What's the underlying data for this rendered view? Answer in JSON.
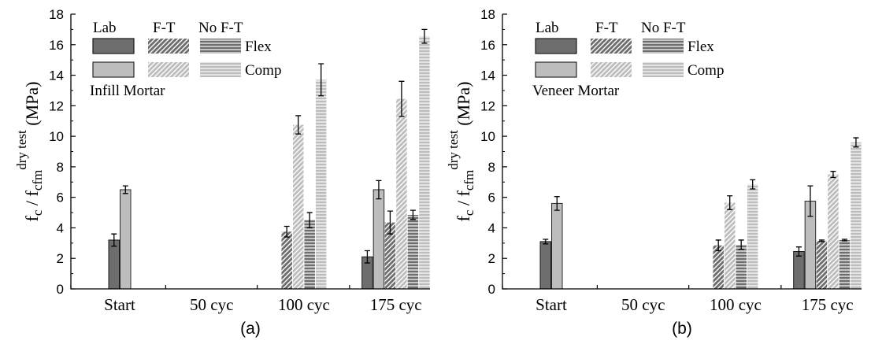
{
  "colors": {
    "flex": "#6e6e6e",
    "comp": "#bdbdbd",
    "flex_stroke": "#1a1a1a",
    "comp_stroke": "#2a2a2a",
    "hatch_line": "#ffffff",
    "axis": "#000000"
  },
  "chart_data": [
    {
      "type": "bar",
      "caption": "(a)",
      "ylabel": {
        "main": "f",
        "sub1": "c",
        "sep": " / f",
        "sub2": "cfm",
        "sup": "dry test",
        "unit": " (MPa)"
      },
      "ylim": [
        0,
        18
      ],
      "yticks": [
        "0",
        "2",
        "4",
        "6",
        "8",
        "10",
        "12",
        "14",
        "16",
        "18"
      ],
      "categories": [
        "Start",
        "50 cyc",
        "100 cyc",
        "175 cyc"
      ],
      "legend": {
        "headers": [
          "Lab",
          "F-T",
          "No F-T"
        ],
        "row_labels": [
          "Flex",
          "Comp"
        ],
        "title": "Infill Mortar",
        "placement": "top-left"
      },
      "series": [
        {
          "condition": "Lab",
          "test": "Flex",
          "pattern": "solid",
          "values": [
            3.2,
            null,
            null,
            2.1
          ],
          "errors": [
            0.4,
            null,
            null,
            0.4
          ]
        },
        {
          "condition": "Lab",
          "test": "Comp",
          "pattern": "solid",
          "values": [
            6.5,
            null,
            null,
            6.5
          ],
          "errors": [
            0.25,
            null,
            null,
            0.6
          ]
        },
        {
          "condition": "F-T",
          "test": "Flex",
          "pattern": "diagonal",
          "values": [
            null,
            null,
            3.75,
            4.35
          ],
          "errors": [
            null,
            null,
            0.35,
            0.75
          ]
        },
        {
          "condition": "F-T",
          "test": "Comp",
          "pattern": "diagonal",
          "values": [
            null,
            null,
            10.75,
            12.45
          ],
          "errors": [
            null,
            null,
            0.6,
            1.15
          ]
        },
        {
          "condition": "No F-T",
          "test": "Flex",
          "pattern": "horizontal",
          "values": [
            null,
            null,
            4.5,
            4.85
          ],
          "errors": [
            null,
            null,
            0.5,
            0.3
          ]
        },
        {
          "condition": "No F-T",
          "test": "Comp",
          "pattern": "horizontal",
          "values": [
            null,
            null,
            13.7,
            16.55
          ],
          "errors": [
            null,
            null,
            1.05,
            0.45
          ]
        }
      ]
    },
    {
      "type": "bar",
      "caption": "(b)",
      "ylabel": {
        "main": "f",
        "sub1": "c",
        "sep": " / f",
        "sub2": "cfm",
        "sup": "dry test",
        "unit": " (MPa)"
      },
      "ylim": [
        0,
        18
      ],
      "yticks": [
        "0",
        "2",
        "4",
        "6",
        "8",
        "10",
        "12",
        "14",
        "16",
        "18"
      ],
      "categories": [
        "Start",
        "50 cyc",
        "100 cyc",
        "175 cyc"
      ],
      "legend": {
        "headers": [
          "Lab",
          "F-T",
          "No F-T"
        ],
        "row_labels": [
          "Flex",
          "Comp"
        ],
        "title": "Veneer Mortar",
        "placement": "top-left"
      },
      "series": [
        {
          "condition": "Lab",
          "test": "Flex",
          "pattern": "solid",
          "values": [
            3.1,
            null,
            null,
            2.45
          ],
          "errors": [
            0.15,
            null,
            null,
            0.3
          ]
        },
        {
          "condition": "Lab",
          "test": "Comp",
          "pattern": "solid",
          "values": [
            5.6,
            null,
            null,
            5.75
          ],
          "errors": [
            0.45,
            null,
            null,
            1.0
          ]
        },
        {
          "condition": "F-T",
          "test": "Flex",
          "pattern": "diagonal",
          "values": [
            null,
            null,
            2.85,
            3.15
          ],
          "errors": [
            null,
            null,
            0.35,
            0.05
          ]
        },
        {
          "condition": "F-T",
          "test": "Comp",
          "pattern": "diagonal",
          "values": [
            null,
            null,
            5.65,
            7.5
          ],
          "errors": [
            null,
            null,
            0.45,
            0.2
          ]
        },
        {
          "condition": "No F-T",
          "test": "Flex",
          "pattern": "horizontal",
          "values": [
            null,
            null,
            2.9,
            3.2
          ],
          "errors": [
            null,
            null,
            0.3,
            0.05
          ]
        },
        {
          "condition": "No F-T",
          "test": "Comp",
          "pattern": "horizontal",
          "values": [
            null,
            null,
            6.85,
            9.6
          ],
          "errors": [
            null,
            null,
            0.3,
            0.3
          ]
        }
      ]
    }
  ]
}
